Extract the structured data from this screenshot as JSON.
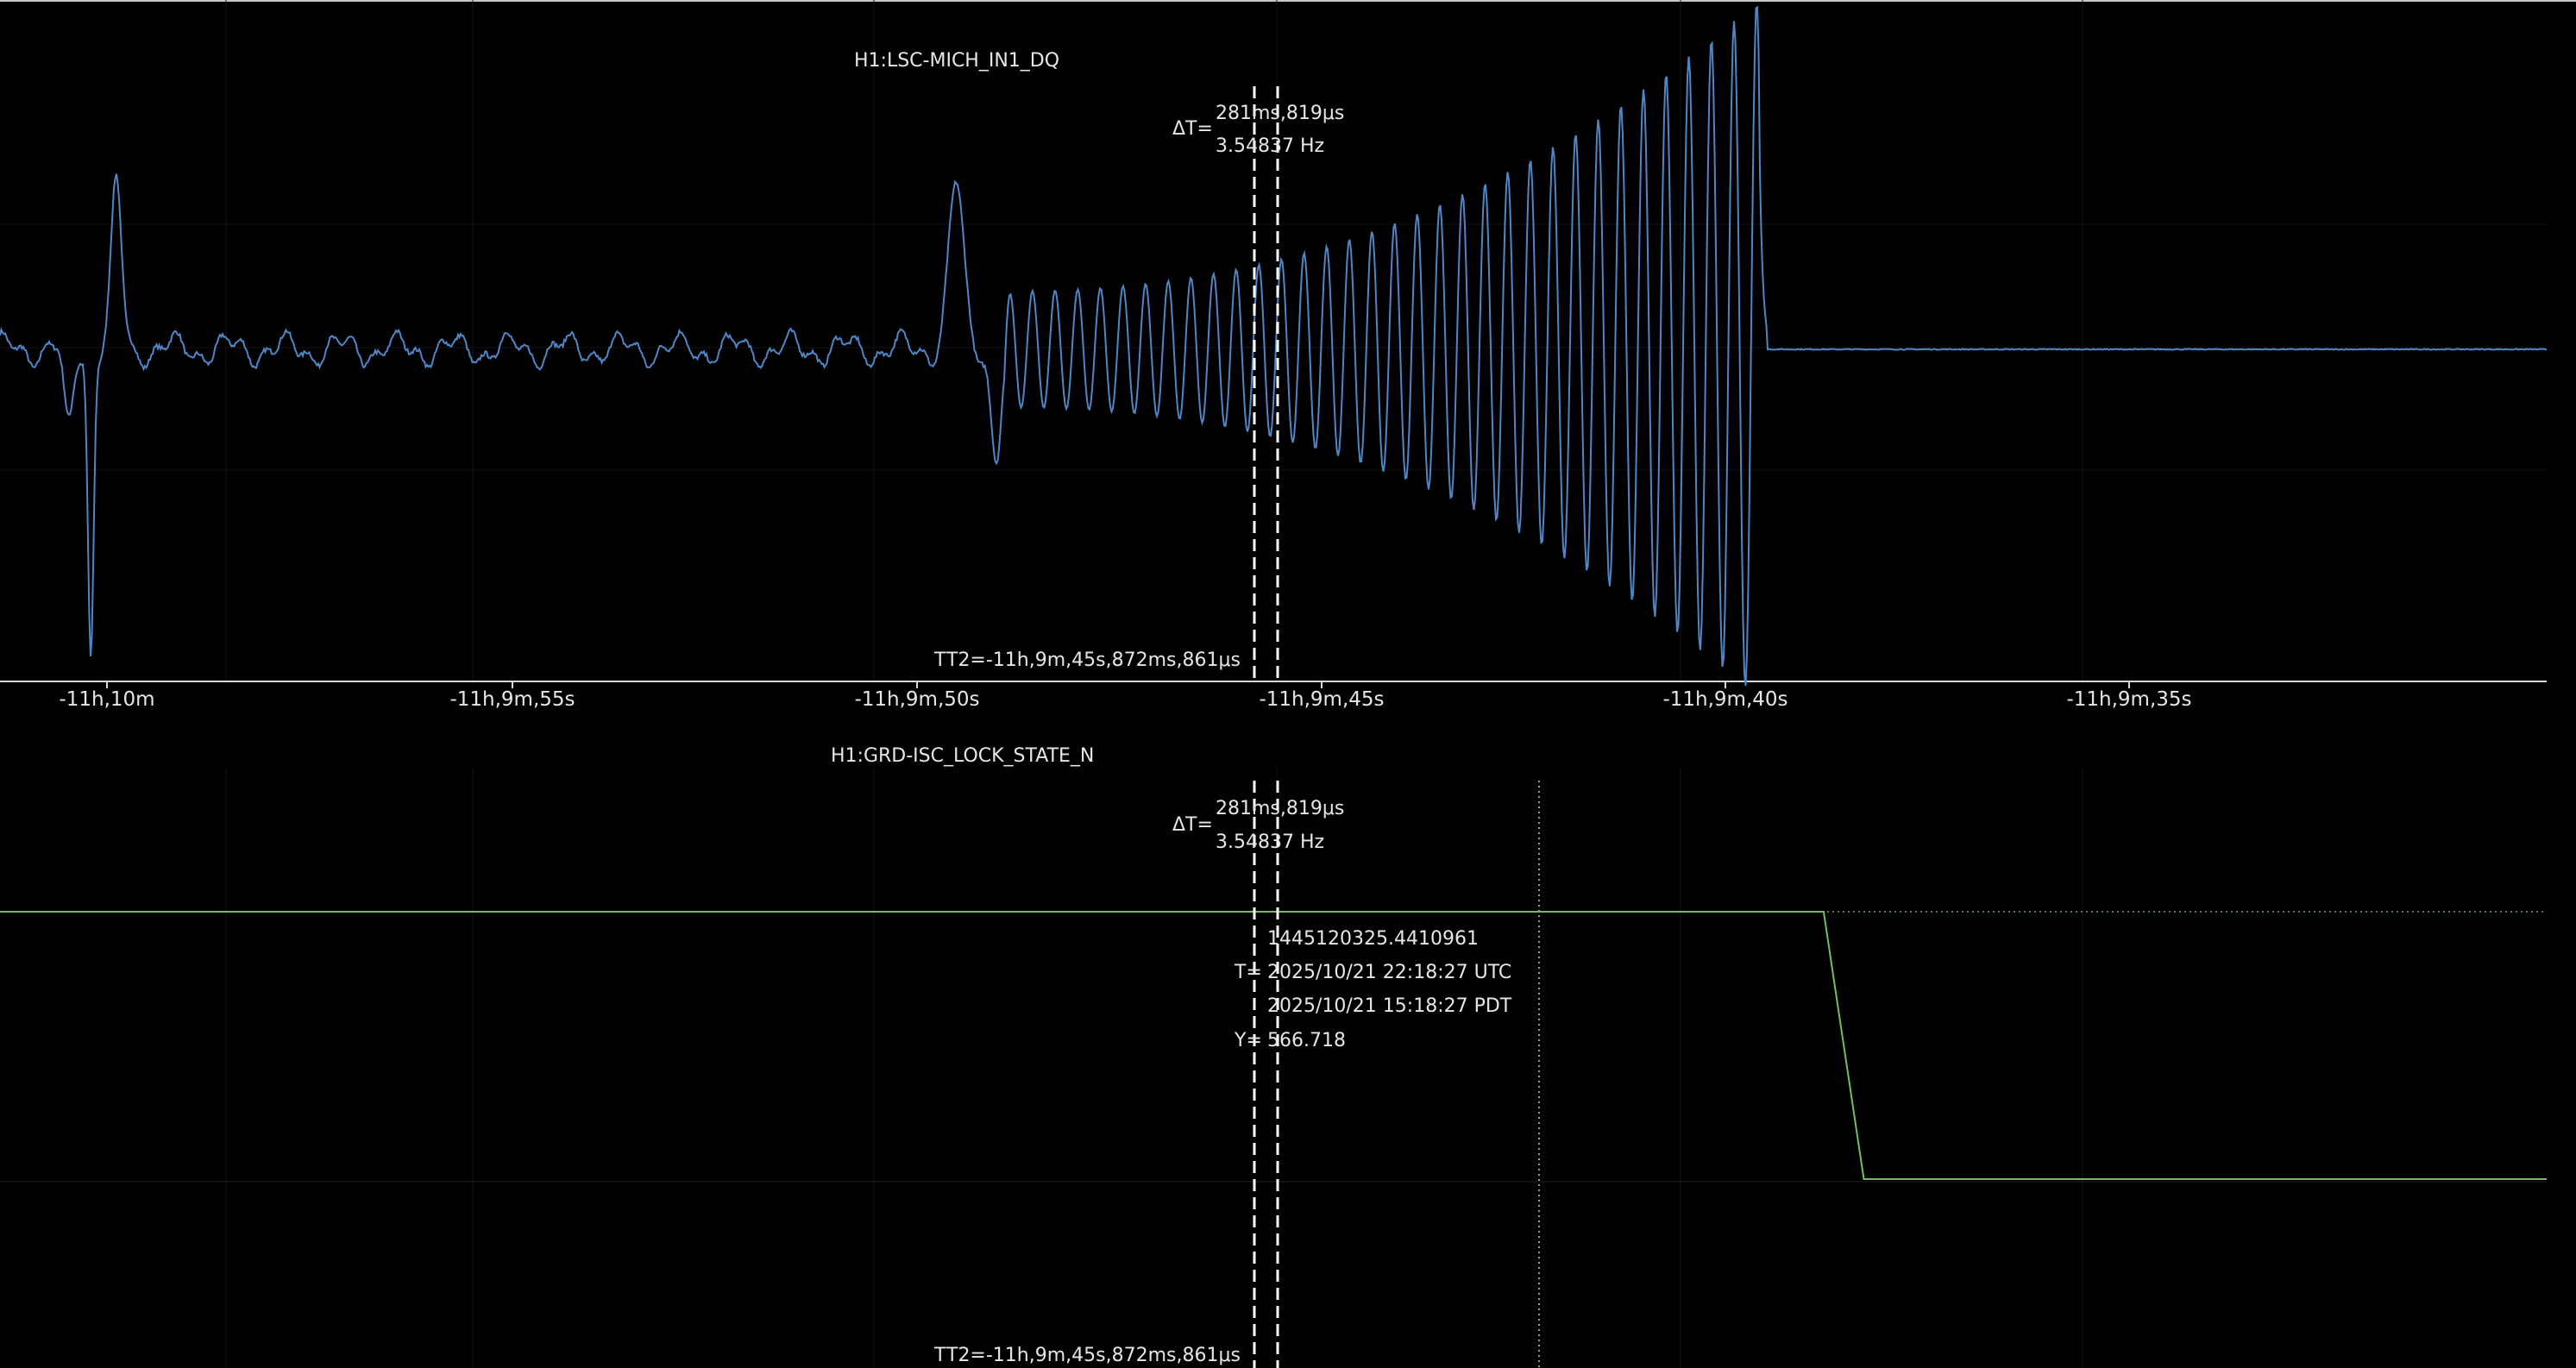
{
  "chart_data": [
    {
      "type": "line",
      "title": "H1:LSC-MICH_IN1_DQ",
      "line_color": "#4f86c6",
      "x_ticks": [
        "-11h,10m",
        "-11h,9m,55s",
        "-11h,9m,50s",
        "-11h,9m,45s",
        "-11h,9m,40s",
        "-11h,9m,35s"
      ],
      "xlim_seconds": [
        -40202.5,
        -40170.8
      ],
      "cursor_delta": {
        "label": "ΔT=",
        "time": "281ms,819μs",
        "freq": "3.54837 Hz"
      },
      "cursor_t2": {
        "label": "T",
        "value": "T2=-11h,9m,45s,872ms,861μs"
      },
      "series": [
        {
          "description": "MICH error signal: noisy baseline, transient near -11h,10m, growing oscillation from -11h,9m,50s to about -11h,9m,41s, then flat",
          "events": [
            {
              "t": -40201.3,
              "kind": "transient spike",
              "amplitude_rel": [
                0.7,
                -1.3
              ]
            },
            {
              "t": -40190.5,
              "kind": "transient spike",
              "amplitude_rel": [
                0.7,
                -0.45
              ]
            },
            {
              "t_start": -40190.0,
              "t_end": -40180.6,
              "kind": "oscillation",
              "freq_hz": 3.55,
              "amplitude_rel_start": 0.25,
              "amplitude_rel_end": 1.5
            },
            {
              "t": -40180.5,
              "kind": "settles to flat"
            }
          ]
        }
      ]
    },
    {
      "type": "line",
      "title": "H1:GRD-ISC_LOCK_STATE_N",
      "line_color": "#6fbf5a",
      "cursor_delta": {
        "label": "ΔT=",
        "time": "281ms,819μs",
        "freq": "3.54837 Hz"
      },
      "cursor_t2": {
        "label": "T",
        "value": "T2=-11h,9m,45s,872ms,861μs"
      },
      "readout": {
        "gps": "1445120325.4410961",
        "t_label": "T=",
        "utc": "2025/10/21 22:18:27 UTC",
        "pdt": "2025/10/21 15:18:27 PDT",
        "y_label": "Y=",
        "y_value": "566.718"
      },
      "series": [
        {
          "description": "Guardian lock state: constant high level, drops to a low level shortly after the lock loss",
          "points": [
            {
              "t": -40202.5,
              "level": "high"
            },
            {
              "t": -40179.8,
              "level": "high"
            },
            {
              "t": -40179.3,
              "level": "low"
            },
            {
              "t": -40170.8,
              "level": "low"
            }
          ]
        }
      ]
    }
  ]
}
